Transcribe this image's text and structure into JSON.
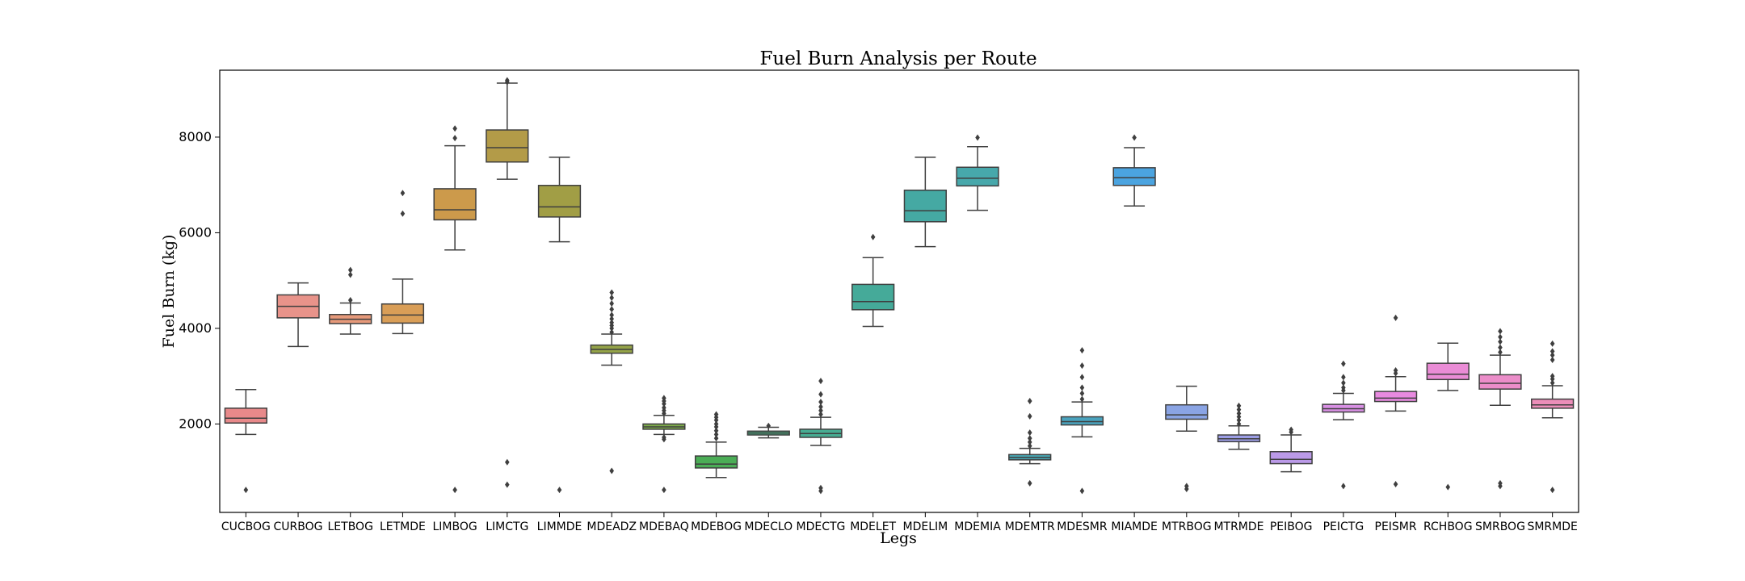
{
  "chart_data": {
    "type": "box",
    "title": "Fuel Burn Analysis per Route",
    "xlabel": "Legs",
    "ylabel": "Fuel Burn (kg)",
    "ylim": [
      150,
      9400
    ],
    "yticks": [
      2000,
      4000,
      6000,
      8000
    ],
    "grid": false,
    "legend": "none",
    "categories": [
      {
        "name": "CUCBOG",
        "color": "#e8898a",
        "whisker_low": 1780,
        "q1": 2020,
        "median": 2120,
        "q3": 2330,
        "whisker_high": 2720,
        "outliers": [
          620
        ]
      },
      {
        "name": "CURBOG",
        "color": "#e8938a",
        "whisker_low": 3620,
        "q1": 4220,
        "median": 4460,
        "q3": 4700,
        "whisker_high": 4950,
        "outliers": []
      },
      {
        "name": "LETBOG",
        "color": "#e6997a",
        "whisker_low": 3880,
        "q1": 4100,
        "median": 4190,
        "q3": 4290,
        "whisker_high": 4530,
        "outliers": [
          4590,
          5120,
          5220
        ]
      },
      {
        "name": "LETMDE",
        "color": "#d99e57",
        "whisker_low": 3890,
        "q1": 4110,
        "median": 4280,
        "q3": 4510,
        "whisker_high": 5030,
        "outliers": [
          6400,
          6830
        ]
      },
      {
        "name": "LIMBOG",
        "color": "#cc9a4b",
        "whisker_low": 5640,
        "q1": 6270,
        "median": 6480,
        "q3": 6920,
        "whisker_high": 7820,
        "outliers": [
          620,
          7980,
          8180
        ]
      },
      {
        "name": "LIMCTG",
        "color": "#b39b48",
        "whisker_low": 7120,
        "q1": 7480,
        "median": 7780,
        "q3": 8150,
        "whisker_high": 9130,
        "outliers": [
          730,
          1200,
          9150,
          9190
        ]
      },
      {
        "name": "LIMMDE",
        "color": "#a19e45",
        "whisker_low": 5810,
        "q1": 6330,
        "median": 6540,
        "q3": 6990,
        "whisker_high": 7580,
        "outliers": [
          620
        ]
      },
      {
        "name": "MDEADZ",
        "color": "#94a348",
        "whisker_low": 3230,
        "q1": 3480,
        "median": 3560,
        "q3": 3650,
        "whisker_high": 3880,
        "outliers": [
          1020,
          3920,
          4000,
          4060,
          4120,
          4200,
          4280,
          4400,
          4520,
          4640,
          4750
        ]
      },
      {
        "name": "MDEBAQ",
        "color": "#7dab4a",
        "whisker_low": 1780,
        "q1": 1890,
        "median": 1940,
        "q3": 2000,
        "whisker_high": 2180,
        "outliers": [
          620,
          1680,
          1720,
          2220,
          2280,
          2340,
          2420,
          2480,
          2540
        ]
      },
      {
        "name": "MDEBOG",
        "color": "#4bad56",
        "whisker_low": 880,
        "q1": 1080,
        "median": 1160,
        "q3": 1330,
        "whisker_high": 1620,
        "outliers": [
          1700,
          1780,
          1860,
          1940,
          2000,
          2080,
          2140,
          2200
        ]
      },
      {
        "name": "MDECLO",
        "color": "#48ad80",
        "whisker_low": 1710,
        "q1": 1770,
        "median": 1810,
        "q3": 1850,
        "whisker_high": 1930,
        "outliers": [
          1960
        ]
      },
      {
        "name": "MDECTG",
        "color": "#47ac92",
        "whisker_low": 1550,
        "q1": 1720,
        "median": 1800,
        "q3": 1890,
        "whisker_high": 2140,
        "outliers": [
          600,
          660,
          2200,
          2280,
          2360,
          2460,
          2620,
          2900
        ]
      },
      {
        "name": "MDELET",
        "color": "#45aa99",
        "whisker_low": 4040,
        "q1": 4390,
        "median": 4560,
        "q3": 4920,
        "whisker_high": 5480,
        "outliers": [
          5910
        ]
      },
      {
        "name": "MDELIM",
        "color": "#45a9a3",
        "whisker_low": 5710,
        "q1": 6230,
        "median": 6460,
        "q3": 6890,
        "whisker_high": 7580,
        "outliers": []
      },
      {
        "name": "MDEMIA",
        "color": "#47a8ab",
        "whisker_low": 6470,
        "q1": 6980,
        "median": 7140,
        "q3": 7370,
        "whisker_high": 7800,
        "outliers": [
          7990
        ]
      },
      {
        "name": "MDEMTR",
        "color": "#48a6b3",
        "whisker_low": 1170,
        "q1": 1250,
        "median": 1300,
        "q3": 1360,
        "whisker_high": 1490,
        "outliers": [
          760,
          1540,
          1620,
          1700,
          1820,
          2160,
          2480
        ]
      },
      {
        "name": "MDESMR",
        "color": "#4aa3be",
        "whisker_low": 1730,
        "q1": 1980,
        "median": 2050,
        "q3": 2150,
        "whisker_high": 2460,
        "outliers": [
          600,
          2520,
          2640,
          2760,
          2980,
          3220,
          3540
        ]
      },
      {
        "name": "MIAMDE",
        "color": "#4ba4e0",
        "whisker_low": 6560,
        "q1": 6990,
        "median": 7150,
        "q3": 7360,
        "whisker_high": 7780,
        "outliers": [
          7990
        ]
      },
      {
        "name": "MTRBOG",
        "color": "#8aa4e4",
        "whisker_low": 1850,
        "q1": 2100,
        "median": 2190,
        "q3": 2400,
        "whisker_high": 2790,
        "outliers": [
          640,
          700
        ]
      },
      {
        "name": "MTRMDE",
        "color": "#9c9ee6",
        "whisker_low": 1470,
        "q1": 1630,
        "median": 1690,
        "q3": 1770,
        "whisker_high": 1960,
        "outliers": [
          2000,
          2080,
          2150,
          2220,
          2300,
          2380
        ]
      },
      {
        "name": "PEIBOG",
        "color": "#bb9ae8",
        "whisker_low": 1000,
        "q1": 1170,
        "median": 1260,
        "q3": 1420,
        "whisker_high": 1770,
        "outliers": [
          1830,
          1880
        ]
      },
      {
        "name": "PEICTG",
        "color": "#d890e4",
        "whisker_low": 2090,
        "q1": 2250,
        "median": 2320,
        "q3": 2410,
        "whisker_high": 2640,
        "outliers": [
          700,
          2700,
          2760,
          2860,
          2980,
          3260
        ]
      },
      {
        "name": "PEISMR",
        "color": "#e88ae0",
        "whisker_low": 2270,
        "q1": 2470,
        "median": 2540,
        "q3": 2680,
        "whisker_high": 2990,
        "outliers": [
          740,
          3060,
          3120,
          4220
        ]
      },
      {
        "name": "RCHBOG",
        "color": "#ea8cd6",
        "whisker_low": 2700,
        "q1": 2930,
        "median": 3040,
        "q3": 3270,
        "whisker_high": 3690,
        "outliers": [
          680
        ]
      },
      {
        "name": "SMRBOG",
        "color": "#eb8dc9",
        "whisker_low": 2390,
        "q1": 2730,
        "median": 2850,
        "q3": 3030,
        "whisker_high": 3440,
        "outliers": [
          700,
          760,
          3500,
          3600,
          3720,
          3820,
          3940
        ]
      },
      {
        "name": "SMRMDE",
        "color": "#ec8eb9",
        "whisker_low": 2130,
        "q1": 2330,
        "median": 2400,
        "q3": 2520,
        "whisker_high": 2800,
        "outliers": [
          620,
          2860,
          2940,
          3000,
          3340,
          3440,
          3520,
          3680
        ]
      }
    ]
  }
}
